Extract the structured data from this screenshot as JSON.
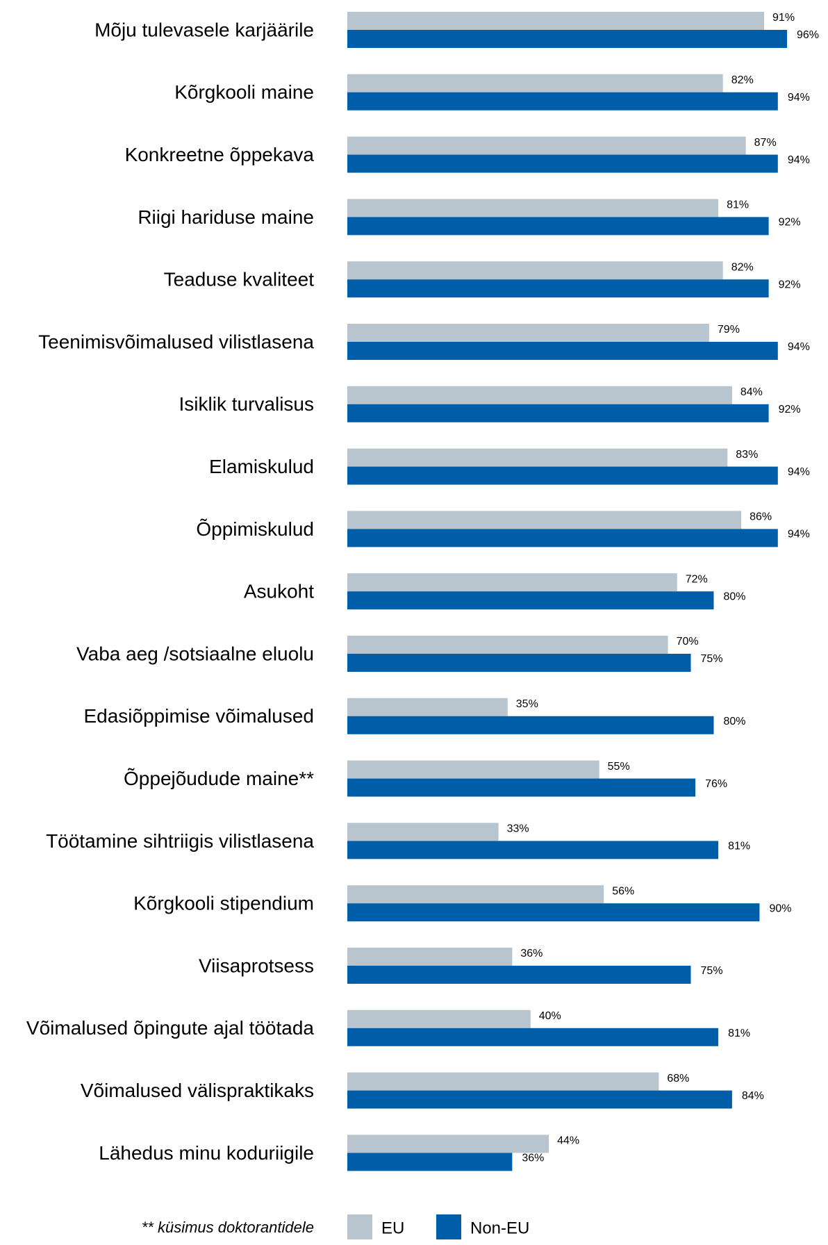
{
  "chart_data": {
    "type": "bar",
    "orientation": "horizontal",
    "categories": [
      "Mõju tulevasele karjäärile",
      "Kõrgkooli maine",
      "Konkreetne õppekava",
      "Riigi hariduse maine",
      "Teaduse kvaliteet",
      "Teenimisvõimalused vilistlasena",
      "Isiklik turvalisus",
      "Elamiskulud",
      "Õppimiskulud",
      "Asukoht",
      "Vaba aeg /sotsiaalne eluolu",
      "Edasiõppimise võimalused",
      "Õppejõudude maine**",
      "Töötamine sihtriigis vilistlasena",
      "Kõrgkooli stipendium",
      "Viisaprotsess",
      "Võimalused õpingute ajal töötada",
      "Võimalused välispraktikaks",
      "Lähedus minu koduriigile"
    ],
    "series": [
      {
        "name": "EU",
        "color": "#b8c4ce",
        "values": [
          91,
          82,
          87,
          81,
          82,
          79,
          84,
          83,
          86,
          72,
          70,
          35,
          55,
          33,
          56,
          36,
          40,
          68,
          44
        ],
        "value_labels": [
          "91%",
          "82%",
          "87%",
          "81%",
          "82%",
          "79%",
          "84%",
          "83%",
          "86%",
          "72%",
          "70%",
          "35%",
          "55%",
          "33%",
          "56%",
          "36%",
          "40%",
          "68%",
          "44%"
        ]
      },
      {
        "name": "Non-EU",
        "color": "#005ea8",
        "values": [
          96,
          94,
          94,
          92,
          92,
          94,
          92,
          94,
          94,
          80,
          75,
          80,
          76,
          81,
          90,
          75,
          81,
          84,
          36
        ],
        "value_labels": [
          "96%",
          "94%",
          "94%",
          "92%",
          "92%",
          "94%",
          "92%",
          "94%",
          "94%",
          "80%",
          "75%",
          "80%",
          "76%",
          "81%",
          "90%",
          "75%",
          "81%",
          "84%",
          "36%"
        ]
      }
    ],
    "footnote": "** küsimus doktorantidele"
  }
}
